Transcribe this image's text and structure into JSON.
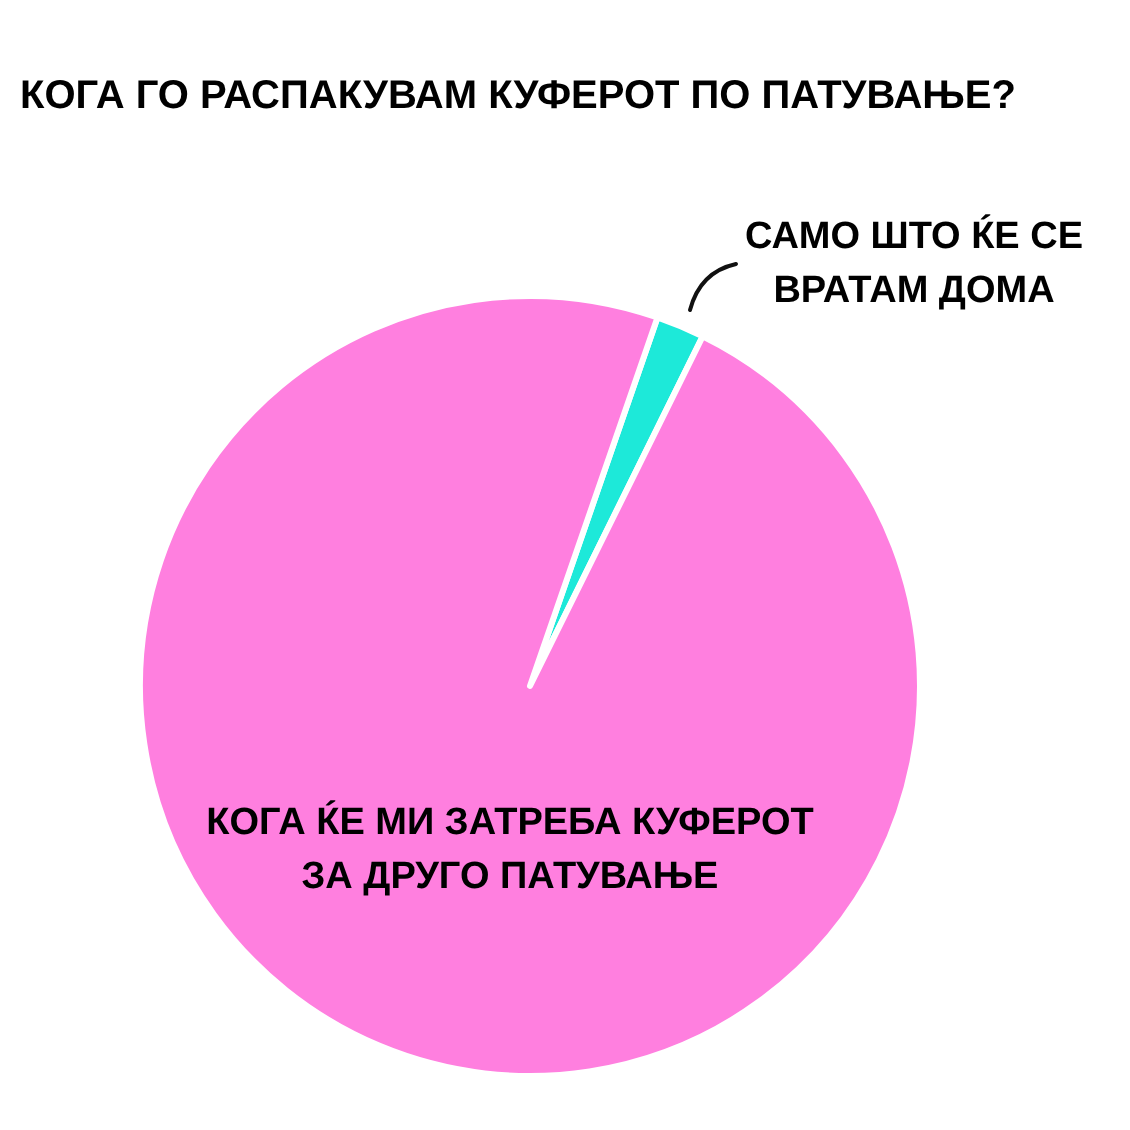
{
  "chart_data": {
    "type": "pie",
    "title": "КОГА ГО РАСПАКУВАМ КУФЕРОТ ПО ПАТУВАЊЕ?",
    "categories": [
      "САМО ШТО ЌЕ СЕ ВРАТАМ ДОМА",
      "КОГА ЌЕ МИ ЗАТРЕБА КУФЕРОТ ЗА ДРУГО ПАТУВАЊЕ"
    ],
    "values": [
      2,
      98
    ],
    "colors": [
      "#1de9d9",
      "#ff7fdf"
    ]
  }
}
